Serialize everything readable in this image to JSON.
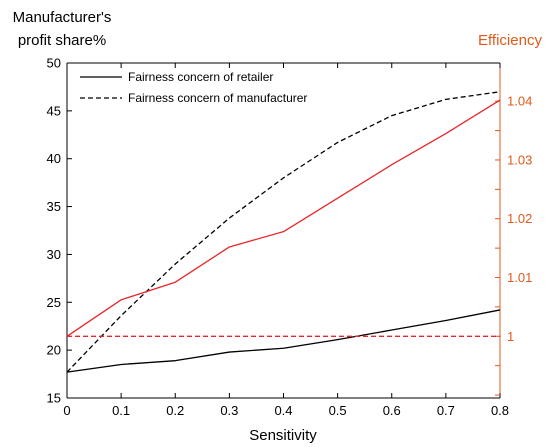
{
  "chart_data": {
    "type": "line",
    "x": [
      0,
      0.1,
      0.2,
      0.3,
      0.4,
      0.5,
      0.6,
      0.7,
      0.8
    ],
    "xlabel": "Sensitivity",
    "xlim": [
      0,
      0.8
    ],
    "xticks": [
      "0",
      "0.1",
      "0.2",
      "0.3",
      "0.4",
      "0.5",
      "0.6",
      "0.7",
      "0.8"
    ],
    "ylabel_left_lines": [
      "Manufacturer's",
      "profit share%"
    ],
    "ylim_left": [
      15,
      50
    ],
    "yticks_left": [
      "15",
      "20",
      "25",
      "30",
      "35",
      "40",
      "45",
      "50"
    ],
    "ylabel_right": "Efficiency",
    "ylim_right": [
      0.9895,
      1.0465
    ],
    "yticks_right": [
      "1",
      "1.01",
      "1.02",
      "1.03",
      "1.04"
    ],
    "grid": false,
    "legend_position": "top-left",
    "series": [
      {
        "name": "Fairness concern of retailer",
        "axis": "left",
        "style": "solid",
        "color": "#000000",
        "values": [
          17.7,
          18.5,
          18.9,
          19.8,
          20.2,
          21.1,
          22.1,
          23.1,
          24.2
        ],
        "in_legend": true
      },
      {
        "name": "Fairness concern of manufacturer",
        "axis": "left",
        "style": "dashed",
        "color": "#000000",
        "values": [
          17.7,
          23.6,
          29.0,
          33.8,
          38.0,
          41.7,
          44.5,
          46.2,
          47.0
        ],
        "in_legend": true
      },
      {
        "axis": "right",
        "style": "solid",
        "color": "#e8262a",
        "values": [
          1.0,
          1.0062,
          1.0092,
          1.0152,
          1.0178,
          1.0235,
          1.0292,
          1.0345,
          1.0402
        ],
        "in_legend": false
      },
      {
        "axis": "right",
        "style": "dashed",
        "color": "#e8262a",
        "values": [
          1.0,
          1.0,
          1.0,
          1.0,
          1.0,
          1.0,
          1.0,
          1.0,
          1.0
        ],
        "in_legend": false
      }
    ],
    "colors": {
      "axis_left": "#000000",
      "axis_right": "#e05a1c",
      "series_red": "#e8262a"
    }
  }
}
